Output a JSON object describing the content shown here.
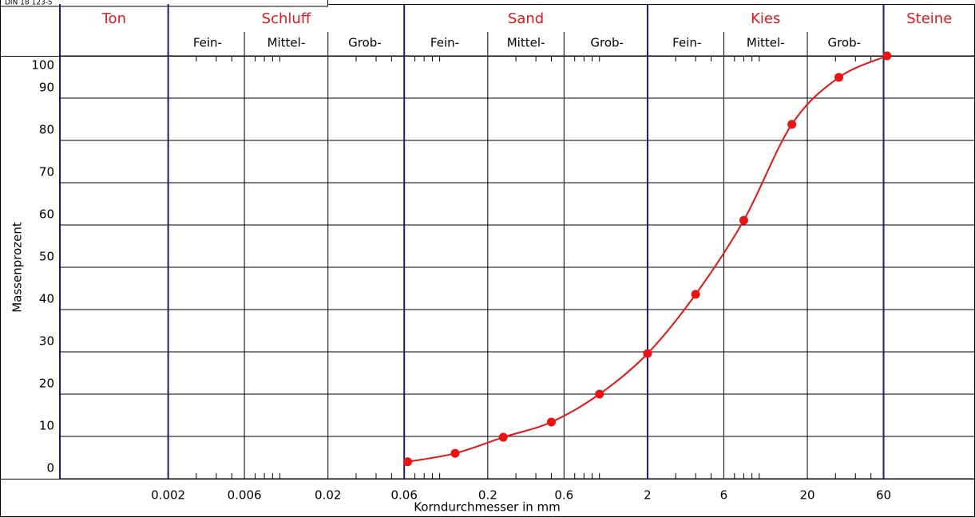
{
  "chart_data": {
    "type": "line",
    "note": "DIN 18 123-5",
    "fractions": [
      "Ton",
      "Schluff",
      "Sand",
      "Kies",
      "Steine"
    ],
    "subfractions": [
      "Fein-",
      "Mittel-",
      "Grob-"
    ],
    "fraction_boundaries": [
      0.002,
      0.06,
      2,
      60
    ],
    "boundary_color": "#1a1a8c",
    "x": [
      0.063,
      0.125,
      0.25,
      0.5,
      1,
      2,
      4,
      8,
      16,
      31.5,
      63
    ],
    "values": [
      4,
      6,
      9.8,
      13.4,
      20,
      29.6,
      43.6,
      61.1,
      83.8,
      94.9,
      100
    ],
    "color": "#ee1111",
    "smooth": true,
    "x_log": true,
    "xlim": [
      0.00042,
      224
    ],
    "xticks": [
      0.002,
      0.006,
      0.02,
      0.06,
      0.2,
      0.6,
      2,
      6,
      20,
      60
    ],
    "xminorticks": [
      0.003,
      0.004,
      0.005,
      0.007,
      0.008,
      0.009,
      0.01,
      0.03,
      0.04,
      0.05,
      0.07,
      0.08,
      0.09,
      0.1,
      0.3,
      0.4,
      0.5,
      0.7,
      0.8,
      0.9,
      1,
      3,
      4,
      5,
      7,
      8,
      9,
      10,
      30,
      40,
      50
    ],
    "ylim": [
      0,
      100
    ],
    "yticks": [
      0,
      10,
      20,
      30,
      40,
      50,
      60,
      70,
      80,
      90,
      100
    ],
    "grid": true,
    "x_label": "Korndurchmesser in mm",
    "y_label": "Massenprozent"
  }
}
